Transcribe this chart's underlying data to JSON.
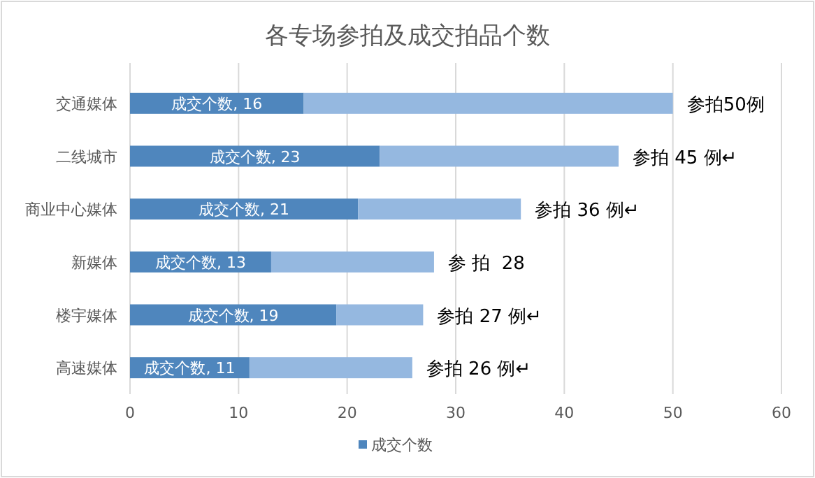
{
  "chart_data": {
    "type": "bar",
    "orientation": "horizontal",
    "title": "各专场参拍及成交拍品个数",
    "categories": [
      "交通媒体",
      "二线城市",
      "商业中心媒体",
      "新媒体",
      "楼宇媒体",
      "高速媒体"
    ],
    "stacked": true,
    "series": [
      {
        "name": "成交个数",
        "color": "#4f86bd",
        "values": [
          16,
          23,
          21,
          13,
          19,
          11
        ],
        "value_labels": [
          "成交个数, 16",
          "成交个数, 23",
          "成交个数, 21",
          "成交个数, 13",
          "成交个数, 19",
          "成交个数, 11"
        ]
      },
      {
        "color": "#95b8e0",
        "values": [
          34,
          22,
          15,
          15,
          8,
          15
        ]
      }
    ],
    "xlim": [
      0,
      60
    ],
    "xticks": [
      0,
      10,
      20,
      30,
      40,
      50,
      60
    ],
    "grid": "x",
    "legend": "bottom",
    "annotations": [
      {
        "text": "参拍50例",
        "x": 50,
        "y": "交通媒体"
      },
      {
        "text": "参拍 45 例↵",
        "x": 45,
        "y": "二线城市"
      },
      {
        "text": "参拍 36 例↵",
        "x": 36,
        "y": "商业中心媒体"
      },
      {
        "text": "参 拍  28",
        "x": 28,
        "y": "新媒体"
      },
      {
        "text": "参拍 27 例↵",
        "x": 27,
        "y": "楼宇媒体"
      },
      {
        "text": "参拍 26 例↵",
        "x": 26,
        "y": "高速媒体"
      }
    ]
  }
}
